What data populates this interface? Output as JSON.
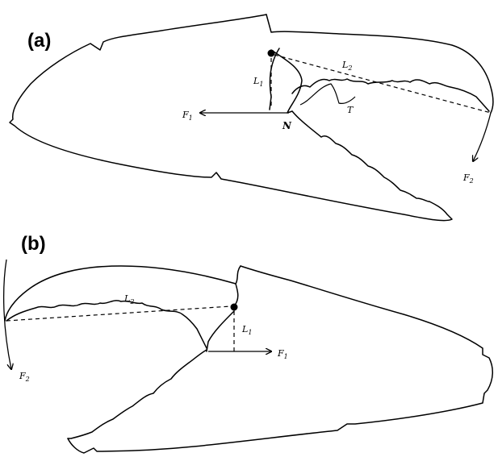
{
  "panels": [
    {
      "label": "(a)",
      "annotations": {
        "l1": "L",
        "l1_sub": "1",
        "l2": "L",
        "l2_sub": "2",
        "f1": "F",
        "f1_sub": "1",
        "f2": "F",
        "f2_sub": "2",
        "n": "N",
        "t": "T"
      }
    },
    {
      "label": "(b)",
      "annotations": {
        "l1": "L",
        "l1_sub": "1",
        "l2": "L",
        "l2_sub": "2",
        "f1": "F",
        "f1_sub": "1",
        "f2": "F",
        "f2_sub": "2"
      }
    }
  ]
}
